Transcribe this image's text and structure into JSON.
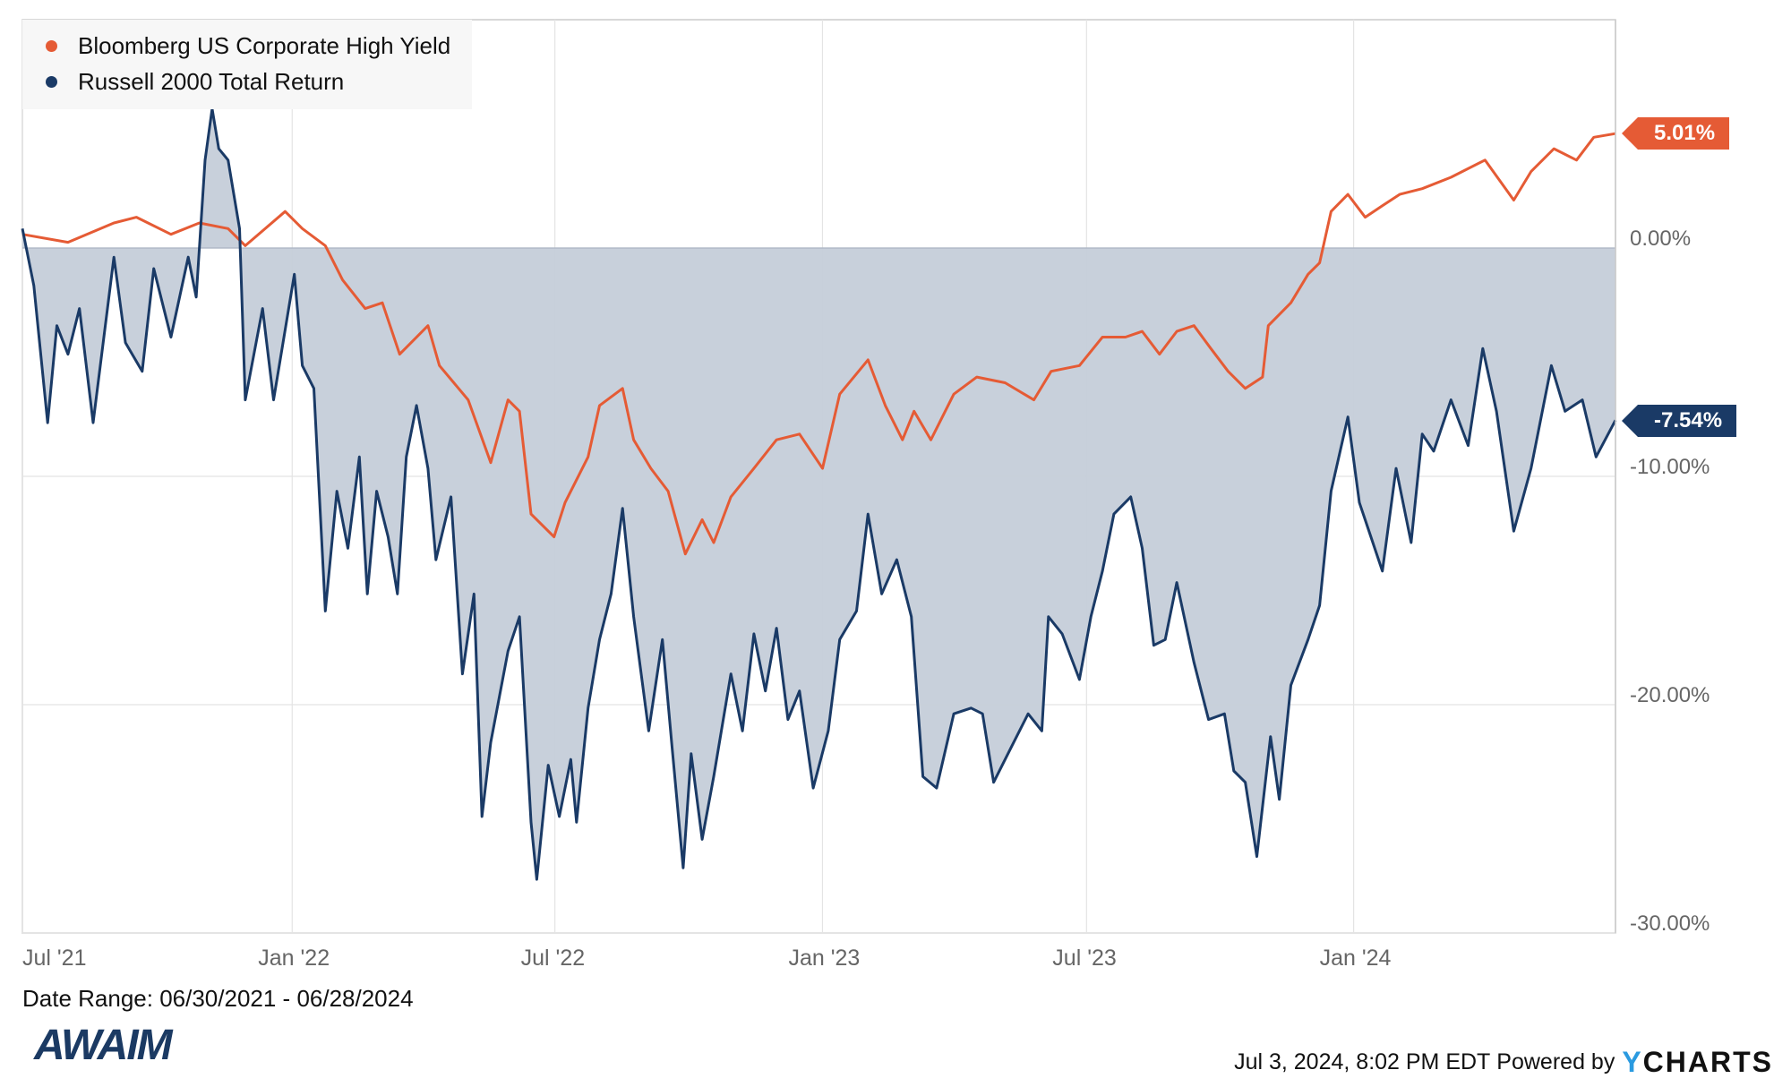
{
  "chart_data": {
    "type": "line",
    "x_unit": "months since 06/30/2021",
    "xlim": [
      0,
      36.02
    ],
    "ylim": [
      -30,
      10
    ],
    "y_ticks": [
      "0.00%",
      "-10.00%",
      "-20.00%",
      "-30.00%"
    ],
    "y_tick_values": [
      0,
      -10,
      -20,
      -30
    ],
    "x_ticks": [
      {
        "label": "Jul '21",
        "m": 0
      },
      {
        "label": "Jan '22",
        "m": 6.1
      },
      {
        "label": "Jul '22",
        "m": 12.04
      },
      {
        "label": "Jan '23",
        "m": 18.09
      },
      {
        "label": "Jul '23",
        "m": 24.06
      },
      {
        "label": "Jan '24",
        "m": 30.1
      }
    ],
    "grid": true,
    "legend_placement": "top-left",
    "series": [
      {
        "name": "Bloomberg US Corporate High Yield",
        "color": "#e55b35",
        "end_label": "5.01%",
        "points": [
          [
            0,
            0.6
          ],
          [
            1.03,
            0.25
          ],
          [
            2.07,
            1.1
          ],
          [
            2.58,
            1.35
          ],
          [
            3.36,
            0.6
          ],
          [
            4.0,
            1.1
          ],
          [
            4.65,
            0.85
          ],
          [
            5.04,
            0.1
          ],
          [
            5.94,
            1.6
          ],
          [
            6.33,
            0.85
          ],
          [
            6.85,
            0.1
          ],
          [
            7.24,
            -1.4
          ],
          [
            7.75,
            -2.65
          ],
          [
            8.14,
            -2.4
          ],
          [
            8.53,
            -4.65
          ],
          [
            9.17,
            -3.4
          ],
          [
            9.43,
            -5.15
          ],
          [
            10.08,
            -6.65
          ],
          [
            10.59,
            -9.4
          ],
          [
            10.98,
            -6.65
          ],
          [
            11.24,
            -7.15
          ],
          [
            11.5,
            -11.65
          ],
          [
            12.02,
            -12.65
          ],
          [
            12.27,
            -11.15
          ],
          [
            12.79,
            -9.15
          ],
          [
            13.05,
            -6.9
          ],
          [
            13.57,
            -6.15
          ],
          [
            13.82,
            -8.4
          ],
          [
            14.21,
            -9.65
          ],
          [
            14.6,
            -10.65
          ],
          [
            14.99,
            -13.4
          ],
          [
            15.37,
            -11.9
          ],
          [
            15.63,
            -12.9
          ],
          [
            16.02,
            -10.9
          ],
          [
            16.54,
            -9.65
          ],
          [
            17.05,
            -8.4
          ],
          [
            17.57,
            -8.15
          ],
          [
            18.09,
            -9.65
          ],
          [
            18.48,
            -6.4
          ],
          [
            19.12,
            -4.9
          ],
          [
            19.51,
            -6.9
          ],
          [
            19.9,
            -8.4
          ],
          [
            20.16,
            -7.15
          ],
          [
            20.54,
            -8.4
          ],
          [
            21.06,
            -6.4
          ],
          [
            21.58,
            -5.65
          ],
          [
            22.22,
            -5.9
          ],
          [
            22.87,
            -6.65
          ],
          [
            23.26,
            -5.4
          ],
          [
            23.9,
            -5.15
          ],
          [
            24.42,
            -3.9
          ],
          [
            24.94,
            -3.9
          ],
          [
            25.32,
            -3.65
          ],
          [
            25.71,
            -4.65
          ],
          [
            26.1,
            -3.65
          ],
          [
            26.49,
            -3.4
          ],
          [
            26.87,
            -4.4
          ],
          [
            27.26,
            -5.4
          ],
          [
            27.65,
            -6.15
          ],
          [
            28.04,
            -5.65
          ],
          [
            28.17,
            -3.4
          ],
          [
            28.68,
            -2.4
          ],
          [
            29.07,
            -1.15
          ],
          [
            29.33,
            -0.65
          ],
          [
            29.59,
            1.6
          ],
          [
            29.97,
            2.35
          ],
          [
            30.36,
            1.35
          ],
          [
            30.75,
            1.85
          ],
          [
            31.14,
            2.35
          ],
          [
            31.65,
            2.6
          ],
          [
            32.3,
            3.1
          ],
          [
            33.07,
            3.85
          ],
          [
            33.72,
            2.1
          ],
          [
            34.11,
            3.35
          ],
          [
            34.63,
            4.35
          ],
          [
            35.14,
            3.85
          ],
          [
            35.53,
            4.85
          ],
          [
            36.02,
            5.01
          ]
        ]
      },
      {
        "name": "Russell 2000 Total Return",
        "color": "#1a3a66",
        "fill": "#c5cdd9",
        "end_label": "-7.54%",
        "points": [
          [
            0,
            0.85
          ],
          [
            0.26,
            -1.65
          ],
          [
            0.57,
            -7.65
          ],
          [
            0.78,
            -3.4
          ],
          [
            1.03,
            -4.65
          ],
          [
            1.29,
            -2.65
          ],
          [
            1.6,
            -7.65
          ],
          [
            2.07,
            -0.4
          ],
          [
            2.33,
            -4.15
          ],
          [
            2.71,
            -5.4
          ],
          [
            2.97,
            -0.9
          ],
          [
            3.36,
            -3.9
          ],
          [
            3.75,
            -0.4
          ],
          [
            3.93,
            -2.15
          ],
          [
            4.13,
            3.85
          ],
          [
            4.29,
            6.1
          ],
          [
            4.44,
            4.35
          ],
          [
            4.65,
            3.85
          ],
          [
            4.91,
            0.85
          ],
          [
            5.04,
            -6.65
          ],
          [
            5.43,
            -2.65
          ],
          [
            5.68,
            -6.65
          ],
          [
            6.15,
            -1.15
          ],
          [
            6.33,
            -5.15
          ],
          [
            6.59,
            -6.15
          ],
          [
            6.85,
            -15.9
          ],
          [
            7.11,
            -10.65
          ],
          [
            7.36,
            -13.15
          ],
          [
            7.62,
            -9.15
          ],
          [
            7.8,
            -15.15
          ],
          [
            8.01,
            -10.65
          ],
          [
            8.27,
            -12.65
          ],
          [
            8.48,
            -15.15
          ],
          [
            8.68,
            -9.15
          ],
          [
            8.91,
            -6.9
          ],
          [
            9.17,
            -9.65
          ],
          [
            9.35,
            -13.65
          ],
          [
            9.69,
            -10.9
          ],
          [
            9.95,
            -18.65
          ],
          [
            10.21,
            -15.15
          ],
          [
            10.39,
            -24.9
          ],
          [
            10.59,
            -21.65
          ],
          [
            10.98,
            -17.65
          ],
          [
            11.24,
            -16.15
          ],
          [
            11.5,
            -25.15
          ],
          [
            11.63,
            -27.65
          ],
          [
            11.89,
            -22.65
          ],
          [
            12.14,
            -24.9
          ],
          [
            12.4,
            -22.4
          ],
          [
            12.53,
            -25.15
          ],
          [
            12.79,
            -20.15
          ],
          [
            13.05,
            -17.15
          ],
          [
            13.31,
            -15.15
          ],
          [
            13.57,
            -11.4
          ],
          [
            13.82,
            -16.15
          ],
          [
            14.16,
            -21.15
          ],
          [
            14.47,
            -17.15
          ],
          [
            14.68,
            -21.65
          ],
          [
            14.94,
            -27.15
          ],
          [
            15.12,
            -22.15
          ],
          [
            15.37,
            -25.9
          ],
          [
            15.63,
            -23.15
          ],
          [
            16.02,
            -18.65
          ],
          [
            16.28,
            -21.15
          ],
          [
            16.54,
            -16.9
          ],
          [
            16.8,
            -19.4
          ],
          [
            17.05,
            -16.65
          ],
          [
            17.31,
            -20.65
          ],
          [
            17.57,
            -19.4
          ],
          [
            17.88,
            -23.65
          ],
          [
            18.22,
            -21.15
          ],
          [
            18.48,
            -17.15
          ],
          [
            18.86,
            -15.9
          ],
          [
            19.12,
            -11.65
          ],
          [
            19.43,
            -15.15
          ],
          [
            19.77,
            -13.65
          ],
          [
            20.1,
            -16.15
          ],
          [
            20.36,
            -23.15
          ],
          [
            20.67,
            -23.65
          ],
          [
            21.06,
            -20.4
          ],
          [
            21.45,
            -20.15
          ],
          [
            21.71,
            -20.4
          ],
          [
            21.96,
            -23.4
          ],
          [
            22.35,
            -21.9
          ],
          [
            22.74,
            -20.4
          ],
          [
            23.05,
            -21.15
          ],
          [
            23.2,
            -16.15
          ],
          [
            23.51,
            -16.9
          ],
          [
            23.9,
            -18.9
          ],
          [
            24.16,
            -16.15
          ],
          [
            24.42,
            -14.15
          ],
          [
            24.68,
            -11.65
          ],
          [
            25.06,
            -10.9
          ],
          [
            25.32,
            -13.15
          ],
          [
            25.58,
            -17.4
          ],
          [
            25.84,
            -17.15
          ],
          [
            26.1,
            -14.65
          ],
          [
            26.49,
            -18.15
          ],
          [
            26.82,
            -20.65
          ],
          [
            27.18,
            -20.4
          ],
          [
            27.39,
            -22.9
          ],
          [
            27.65,
            -23.4
          ],
          [
            27.91,
            -26.65
          ],
          [
            28.22,
            -21.4
          ],
          [
            28.42,
            -24.15
          ],
          [
            28.68,
            -19.15
          ],
          [
            29.07,
            -17.15
          ],
          [
            29.33,
            -15.65
          ],
          [
            29.59,
            -10.65
          ],
          [
            29.97,
            -7.4
          ],
          [
            30.23,
            -11.15
          ],
          [
            30.49,
            -12.65
          ],
          [
            30.75,
            -14.15
          ],
          [
            31.06,
            -9.65
          ],
          [
            31.4,
            -12.9
          ],
          [
            31.65,
            -8.15
          ],
          [
            31.91,
            -8.9
          ],
          [
            32.3,
            -6.65
          ],
          [
            32.69,
            -8.65
          ],
          [
            33.02,
            -4.4
          ],
          [
            33.33,
            -7.15
          ],
          [
            33.72,
            -12.4
          ],
          [
            34.11,
            -9.65
          ],
          [
            34.57,
            -5.15
          ],
          [
            34.88,
            -7.15
          ],
          [
            35.27,
            -6.65
          ],
          [
            35.58,
            -9.15
          ],
          [
            36.02,
            -7.54
          ]
        ]
      }
    ],
    "date_range": "Date Range: 06/30/2021 - 06/28/2024"
  },
  "footer": {
    "timestamp": "Jul 3, 2024, 8:02 PM EDT",
    "powered_by": "Powered by",
    "brand_y": "Y",
    "brand_rest": "CHARTS",
    "logo_text": "AWAIM"
  }
}
